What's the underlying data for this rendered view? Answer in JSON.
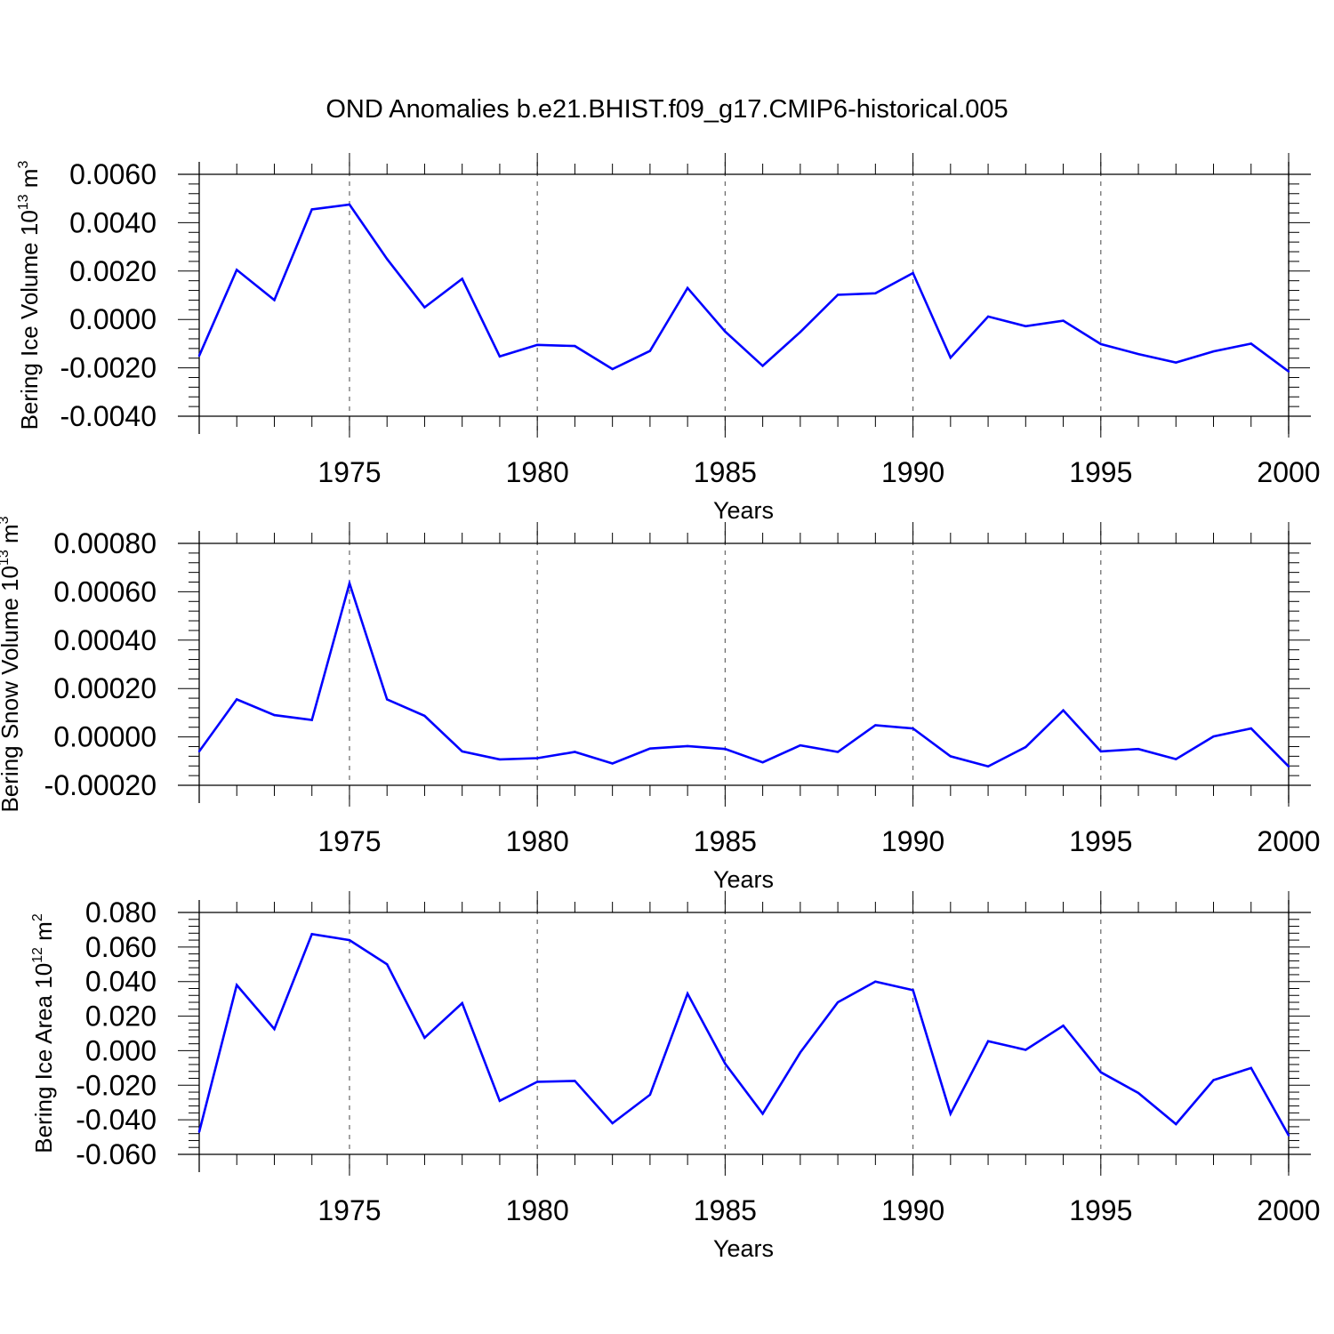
{
  "title": "OND Anomalies b.e21.BHIST.f09_g17.CMIP6-historical.005",
  "colors": {
    "series": "#0000ff",
    "axis": "#000000",
    "grid": "#666666"
  },
  "chart_data": [
    {
      "type": "line",
      "ylabel": {
        "base": "Bering Ice Volume 10",
        "exp": "13",
        "unit": " m",
        "unit_exp": "3"
      },
      "xlabel": "Years",
      "xlim": [
        1971,
        2000
      ],
      "ylim": [
        -0.004,
        0.006
      ],
      "yticks": [
        -0.004,
        -0.002,
        0.0,
        0.002,
        0.004,
        0.006
      ],
      "ytick_labels": [
        "-0.0040",
        "-0.0020",
        "0.0000",
        "0.0020",
        "0.0040",
        "0.0060"
      ],
      "xticks": [
        1975,
        1980,
        1985,
        1990,
        1995,
        2000
      ],
      "xtick_labels": [
        "1975",
        "1980",
        "1985",
        "1990",
        "1995",
        "2000"
      ],
      "x": [
        1971,
        1972,
        1973,
        1974,
        1975,
        1976,
        1977,
        1978,
        1979,
        1980,
        1981,
        1982,
        1983,
        1984,
        1985,
        1986,
        1987,
        1988,
        1989,
        1990,
        1991,
        1992,
        1993,
        1994,
        1995,
        1996,
        1997,
        1998,
        1999,
        2000
      ],
      "values": [
        -0.0015,
        0.00205,
        0.0008,
        0.00455,
        0.00475,
        0.0025,
        0.0005,
        0.00168,
        -0.00153,
        -0.00105,
        -0.0011,
        -0.00205,
        -0.0013,
        0.0013,
        -0.0005,
        -0.00192,
        -0.00052,
        0.00102,
        0.00108,
        0.00192,
        -0.00158,
        0.00012,
        -0.00028,
        -5e-05,
        -0.00102,
        -0.00143,
        -0.00178,
        -0.00132,
        -0.001,
        -0.00215
      ]
    },
    {
      "type": "line",
      "ylabel": {
        "base": "Bering Snow Volume 10",
        "exp": "13",
        "unit": " m",
        "unit_exp": "3"
      },
      "xlabel": "Years",
      "xlim": [
        1971,
        2000
      ],
      "ylim": [
        -0.0002,
        0.0008
      ],
      "yticks": [
        -0.0002,
        0.0,
        0.0002,
        0.0004,
        0.0006,
        0.0008
      ],
      "ytick_labels": [
        "-0.00020",
        "0.00000",
        "0.00020",
        "0.00040",
        "0.00060",
        "0.00080"
      ],
      "xticks": [
        1975,
        1980,
        1985,
        1990,
        1995,
        2000
      ],
      "xtick_labels": [
        "1975",
        "1980",
        "1985",
        "1990",
        "1995",
        "2000"
      ],
      "x": [
        1971,
        1972,
        1973,
        1974,
        1975,
        1976,
        1977,
        1978,
        1979,
        1980,
        1981,
        1982,
        1983,
        1984,
        1985,
        1986,
        1987,
        1988,
        1989,
        1990,
        1991,
        1992,
        1993,
        1994,
        1995,
        1996,
        1997,
        1998,
        1999,
        2000
      ],
      "values": [
        -6e-05,
        0.000155,
        9e-05,
        7e-05,
        0.000635,
        0.000155,
        8.7e-05,
        -6e-05,
        -9.3e-05,
        -8.8e-05,
        -6.2e-05,
        -0.00011,
        -4.8e-05,
        -3.8e-05,
        -5e-05,
        -0.000105,
        -3.5e-05,
        -6.2e-05,
        4.8e-05,
        3.5e-05,
        -8e-05,
        -0.000122,
        -4.2e-05,
        0.00011,
        -6e-05,
        -5e-05,
        -9.2e-05,
        2e-06,
        3.5e-05,
        -0.000122
      ]
    },
    {
      "type": "line",
      "ylabel": {
        "base": "Bering Ice Area 10",
        "exp": "12",
        "unit": " m",
        "unit_exp": "2"
      },
      "xlabel": "Years",
      "xlim": [
        1971,
        2000
      ],
      "ylim": [
        -0.06,
        0.08
      ],
      "yticks": [
        -0.06,
        -0.04,
        -0.02,
        0.0,
        0.02,
        0.04,
        0.06,
        0.08
      ],
      "ytick_labels": [
        "-0.060",
        "-0.040",
        "-0.020",
        "0.000",
        "0.020",
        "0.040",
        "0.060",
        "0.080"
      ],
      "xticks": [
        1975,
        1980,
        1985,
        1990,
        1995,
        2000
      ],
      "xtick_labels": [
        "1975",
        "1980",
        "1985",
        "1990",
        "1995",
        "2000"
      ],
      "x": [
        1971,
        1972,
        1973,
        1974,
        1975,
        1976,
        1977,
        1978,
        1979,
        1980,
        1981,
        1982,
        1983,
        1984,
        1985,
        1986,
        1987,
        1988,
        1989,
        1990,
        1991,
        1992,
        1993,
        1994,
        1995,
        1996,
        1997,
        1998,
        1999,
        2000
      ],
      "values": [
        -0.047,
        0.038,
        0.0125,
        0.0675,
        0.064,
        0.05,
        0.0075,
        0.0275,
        -0.029,
        -0.018,
        -0.0175,
        -0.042,
        -0.0255,
        0.033,
        -0.0075,
        -0.0365,
        -0.001,
        0.028,
        0.04,
        0.035,
        -0.0365,
        0.0055,
        0.0005,
        0.0145,
        -0.0125,
        -0.0245,
        -0.0425,
        -0.017,
        -0.01,
        -0.049
      ]
    }
  ]
}
